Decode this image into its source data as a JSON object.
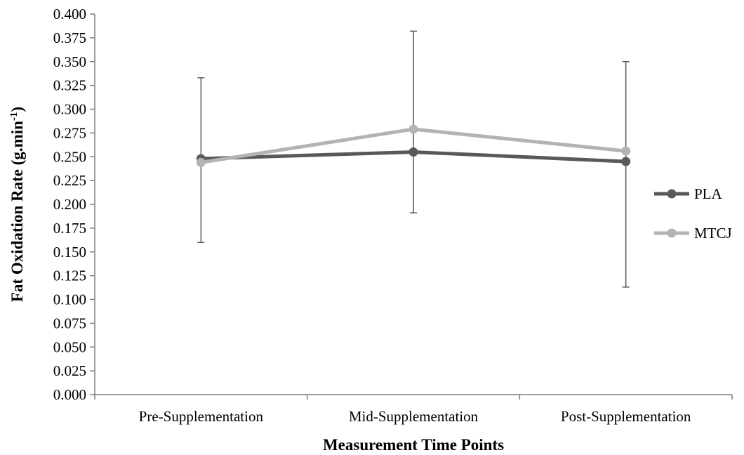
{
  "chart_data": {
    "type": "line",
    "title": "",
    "xlabel": "Measurement Time Points",
    "ylabel": {
      "main": "Fat Oxidation Rate (g.min",
      "superscript": "-1",
      "close": ")"
    },
    "categories": [
      "Pre-Supplementation",
      "Mid-Supplementation",
      "Post-Supplementation"
    ],
    "ylim": [
      0,
      0.4
    ],
    "ytick_step": 0.025,
    "ytick_labels": [
      "0.000",
      "0.025",
      "0.050",
      "0.075",
      "0.100",
      "0.125",
      "0.150",
      "0.175",
      "0.200",
      "0.225",
      "0.250",
      "0.275",
      "0.300",
      "0.325",
      "0.350",
      "0.375",
      "0.400"
    ],
    "grid": false,
    "legend_position": "right",
    "series": [
      {
        "name": "PLA",
        "color": "#595959",
        "values": [
          0.248,
          0.255,
          0.245
        ],
        "error_lower": [
          0.16,
          0.191,
          0.113
        ],
        "error_upper": [
          0.333,
          0.382,
          0.35
        ]
      },
      {
        "name": "MTCJ",
        "color": "#b3b3b3",
        "values": [
          0.244,
          0.279,
          0.256
        ],
        "error_lower": null,
        "error_upper": null
      }
    ],
    "error_bar_color": "#595959"
  }
}
